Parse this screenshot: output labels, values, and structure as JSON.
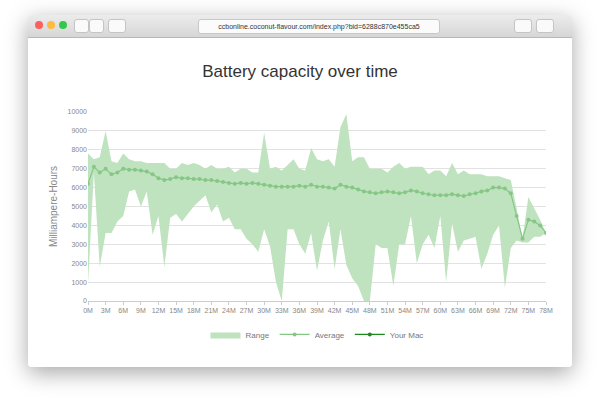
{
  "browser": {
    "url": "ccbonline.coconut-flavour.com/index.php?bid=6288c870e455ca5"
  },
  "chart_data": {
    "type": "line",
    "title": "Battery capacity over time",
    "y_label": "Milliampere-Hours",
    "x": [
      0,
      1,
      2,
      3,
      4,
      5,
      6,
      7,
      8,
      9,
      10,
      11,
      12,
      13,
      14,
      15,
      16,
      17,
      18,
      19,
      20,
      21,
      22,
      23,
      24,
      25,
      26,
      27,
      28,
      29,
      30,
      31,
      32,
      33,
      34,
      35,
      36,
      37,
      38,
      39,
      40,
      41,
      42,
      43,
      44,
      45,
      46,
      47,
      48,
      49,
      50,
      51,
      52,
      53,
      54,
      55,
      56,
      57,
      58,
      59,
      60,
      61,
      62,
      63,
      64,
      65,
      66,
      67,
      68,
      69,
      70,
      71,
      72,
      73,
      74,
      75,
      76,
      77,
      78
    ],
    "xlim": [
      0,
      78
    ],
    "xticks": [
      {
        "value": 0,
        "label": "0M"
      },
      {
        "value": 3,
        "label": "3M"
      },
      {
        "value": 6,
        "label": "6M"
      },
      {
        "value": 9,
        "label": "9M"
      },
      {
        "value": 12,
        "label": "12M"
      },
      {
        "value": 15,
        "label": "15M"
      },
      {
        "value": 18,
        "label": "18M"
      },
      {
        "value": 21,
        "label": "21M"
      },
      {
        "value": 24,
        "label": "24M"
      },
      {
        "value": 27,
        "label": "27M"
      },
      {
        "value": 30,
        "label": "30M"
      },
      {
        "value": 33,
        "label": "33M"
      },
      {
        "value": 36,
        "label": "36M"
      },
      {
        "value": 39,
        "label": "39M"
      },
      {
        "value": 42,
        "label": "42M"
      },
      {
        "value": 45,
        "label": "45M"
      },
      {
        "value": 48,
        "label": "48M"
      },
      {
        "value": 51,
        "label": "51M"
      },
      {
        "value": 54,
        "label": "54M"
      },
      {
        "value": 57,
        "label": "57M"
      },
      {
        "value": 60,
        "label": "60M"
      },
      {
        "value": 63,
        "label": "63M"
      },
      {
        "value": 66,
        "label": "66M"
      },
      {
        "value": 69,
        "label": "69M"
      },
      {
        "value": 72,
        "label": "72M"
      },
      {
        "value": 75,
        "label": "75M"
      },
      {
        "value": 78,
        "label": "78M"
      }
    ],
    "ylim": [
      0,
      10000
    ],
    "yticks": [
      0,
      1000,
      2000,
      3000,
      4000,
      5000,
      6000,
      7000,
      8000,
      9000,
      10000
    ],
    "grid": true,
    "legend": "bottom",
    "series": [
      {
        "name": "Range",
        "type": "area",
        "color": "#bfe2bf",
        "low": [
          900,
          6800,
          1800,
          3600,
          3600,
          4200,
          4500,
          5800,
          5900,
          5000,
          5800,
          3500,
          4500,
          1800,
          4400,
          4600,
          4200,
          4600,
          5000,
          5300,
          5600,
          4700,
          5100,
          4200,
          4400,
          3800,
          3800,
          3300,
          3000,
          2600,
          3800,
          2900,
          1000,
          0,
          3800,
          3800,
          3000,
          2500,
          3600,
          1600,
          3200,
          4200,
          1700,
          3800,
          1900,
          1200,
          800,
          0,
          0,
          3000,
          2800,
          2800,
          800,
          3000,
          3000,
          4500,
          2000,
          3000,
          3500,
          2800,
          4500,
          1000,
          4100,
          2600,
          3200,
          3300,
          3400,
          1700,
          2500,
          3500,
          4000,
          700,
          2800,
          3200,
          3100,
          3100,
          3400,
          3400,
          3600
        ],
        "high": [
          7800,
          7500,
          7600,
          9000,
          7400,
          7300,
          7800,
          7500,
          7400,
          7400,
          7300,
          7300,
          7300,
          7300,
          7000,
          7000,
          7300,
          7200,
          7300,
          7200,
          7000,
          7200,
          7000,
          7000,
          7100,
          6800,
          7000,
          7000,
          6800,
          6800,
          8900,
          7000,
          7100,
          6900,
          7200,
          7500,
          7000,
          6900,
          8100,
          7500,
          7400,
          7500,
          7100,
          9200,
          9900,
          7400,
          7600,
          7600,
          7000,
          7000,
          7000,
          6800,
          7100,
          7300,
          7000,
          7100,
          7100,
          7100,
          6700,
          6900,
          6900,
          6600,
          7300,
          6700,
          6900,
          6700,
          6700,
          6700,
          6600,
          6600,
          6600,
          6500,
          6400,
          4900,
          3300,
          5500,
          4900,
          4300,
          3600
        ]
      },
      {
        "name": "Average",
        "type": "line",
        "color": "#86c786",
        "marker": "circle",
        "values": [
          6200,
          7100,
          6800,
          7000,
          6700,
          6800,
          7000,
          6950,
          6950,
          6900,
          6850,
          6700,
          6500,
          6400,
          6450,
          6550,
          6500,
          6500,
          6450,
          6450,
          6400,
          6400,
          6350,
          6300,
          6250,
          6200,
          6250,
          6200,
          6250,
          6200,
          6150,
          6100,
          6050,
          6050,
          6050,
          6050,
          6100,
          6050,
          6150,
          6050,
          6050,
          6000,
          5950,
          6150,
          6050,
          6000,
          5900,
          5800,
          5750,
          5700,
          5750,
          5800,
          5750,
          5700,
          5750,
          5850,
          5800,
          5700,
          5650,
          5600,
          5600,
          5600,
          5650,
          5600,
          5550,
          5650,
          5700,
          5800,
          5850,
          6000,
          6000,
          5950,
          5700,
          4500,
          3300,
          4300,
          4200,
          4000,
          3600
        ]
      },
      {
        "name": "Your Mac",
        "type": "line",
        "color": "#1e8a1e",
        "marker": "circle",
        "values": [
          null,
          null,
          null,
          null,
          null,
          null,
          null,
          null,
          null,
          null,
          null,
          null,
          null,
          null,
          null,
          null,
          null,
          null,
          null,
          null,
          null,
          null,
          null,
          null,
          null,
          null,
          null,
          null,
          null,
          null,
          null,
          null,
          null,
          null,
          null,
          null,
          null,
          null,
          null,
          null,
          null,
          null,
          null,
          null,
          null,
          null,
          null,
          null,
          null,
          null,
          null,
          null,
          null,
          null,
          null,
          null,
          null,
          null,
          null,
          null,
          null,
          null,
          null,
          null,
          null,
          null,
          null,
          null,
          null,
          null,
          null,
          null,
          null,
          null,
          null,
          null,
          null,
          null,
          null
        ]
      }
    ]
  }
}
